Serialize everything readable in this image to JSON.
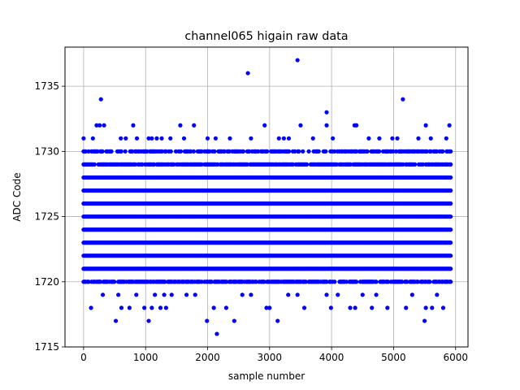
{
  "chart_data": {
    "type": "scatter",
    "title": "channel065 higain raw data",
    "xlabel": "sample number",
    "ylabel": "ADC Code",
    "xlim": [
      -300,
      6200
    ],
    "ylim": [
      1715,
      1738
    ],
    "xticks": [
      0,
      1000,
      2000,
      3000,
      4000,
      5000,
      6000
    ],
    "yticks": [
      1715,
      1720,
      1725,
      1730,
      1735
    ],
    "grid": true,
    "marker_color": "#0000ff",
    "n_samples": 5920,
    "series": [
      {
        "values_note": "",
        "dense_levels": [
          1721,
          1722,
          1723,
          1724,
          1725,
          1726,
          1727,
          1728
        ],
        "level_ranges": [
          {
            "y": 1720,
            "x": [
              0,
              5920
            ]
          },
          {
            "y": 1721,
            "x": [
              0,
              5920
            ]
          },
          {
            "y": 1722,
            "x": [
              0,
              5920
            ]
          },
          {
            "y": 1723,
            "x": [
              0,
              5920
            ]
          },
          {
            "y": 1724,
            "x": [
              0,
              5920
            ]
          },
          {
            "y": 1725,
            "x": [
              0,
              5920
            ]
          },
          {
            "y": 1726,
            "x": [
              0,
              5920
            ]
          },
          {
            "y": 1727,
            "x": [
              0,
              5920
            ]
          },
          {
            "y": 1728,
            "x": [
              0,
              5920
            ]
          },
          {
            "y": 1729,
            "x": [
              0,
              5920
            ]
          },
          {
            "y": 1730,
            "x": [
              0,
              5920
            ]
          }
        ],
        "sparse_points": [
          [
            0,
            1731
          ],
          [
            150,
            1731
          ],
          [
            210,
            1732
          ],
          [
            260,
            1732
          ],
          [
            330,
            1732
          ],
          [
            600,
            1731
          ],
          [
            680,
            1731
          ],
          [
            800,
            1732
          ],
          [
            860,
            1731
          ],
          [
            1050,
            1731
          ],
          [
            1100,
            1731
          ],
          [
            1180,
            1731
          ],
          [
            1260,
            1731
          ],
          [
            1400,
            1731
          ],
          [
            1560,
            1732
          ],
          [
            1620,
            1731
          ],
          [
            1780,
            1732
          ],
          [
            2000,
            1731
          ],
          [
            2130,
            1731
          ],
          [
            2360,
            1731
          ],
          [
            2700,
            1731
          ],
          [
            2920,
            1732
          ],
          [
            3150,
            1731
          ],
          [
            3230,
            1731
          ],
          [
            3310,
            1731
          ],
          [
            3500,
            1732
          ],
          [
            3700,
            1731
          ],
          [
            3920,
            1732
          ],
          [
            4020,
            1731
          ],
          [
            4370,
            1732
          ],
          [
            4400,
            1732
          ],
          [
            4600,
            1731
          ],
          [
            4770,
            1731
          ],
          [
            4980,
            1731
          ],
          [
            5060,
            1731
          ],
          [
            5400,
            1731
          ],
          [
            5520,
            1732
          ],
          [
            5600,
            1731
          ],
          [
            5850,
            1731
          ],
          [
            5900,
            1732
          ],
          [
            120,
            1718
          ],
          [
            310,
            1719
          ],
          [
            520,
            1717
          ],
          [
            560,
            1719
          ],
          [
            610,
            1718
          ],
          [
            740,
            1718
          ],
          [
            850,
            1719
          ],
          [
            980,
            1718
          ],
          [
            1050,
            1717
          ],
          [
            1100,
            1718
          ],
          [
            1150,
            1719
          ],
          [
            1240,
            1718
          ],
          [
            1300,
            1719
          ],
          [
            1330,
            1718
          ],
          [
            1420,
            1719
          ],
          [
            1660,
            1719
          ],
          [
            1800,
            1719
          ],
          [
            1990,
            1717
          ],
          [
            2100,
            1718
          ],
          [
            2150,
            1716
          ],
          [
            2300,
            1718
          ],
          [
            2430,
            1717
          ],
          [
            2560,
            1719
          ],
          [
            2700,
            1719
          ],
          [
            2950,
            1718
          ],
          [
            3000,
            1718
          ],
          [
            3130,
            1717
          ],
          [
            3300,
            1719
          ],
          [
            3450,
            1719
          ],
          [
            3560,
            1718
          ],
          [
            3920,
            1719
          ],
          [
            3990,
            1718
          ],
          [
            4100,
            1719
          ],
          [
            4300,
            1718
          ],
          [
            4380,
            1718
          ],
          [
            4500,
            1719
          ],
          [
            4650,
            1718
          ],
          [
            4720,
            1719
          ],
          [
            4900,
            1718
          ],
          [
            5200,
            1718
          ],
          [
            5300,
            1719
          ],
          [
            5500,
            1717
          ],
          [
            5520,
            1718
          ],
          [
            5620,
            1718
          ],
          [
            5700,
            1719
          ],
          [
            5800,
            1718
          ],
          [
            280,
            1734
          ],
          [
            2650,
            1736
          ],
          [
            3450,
            1737
          ],
          [
            3920,
            1733
          ],
          [
            5150,
            1734
          ]
        ]
      }
    ]
  }
}
